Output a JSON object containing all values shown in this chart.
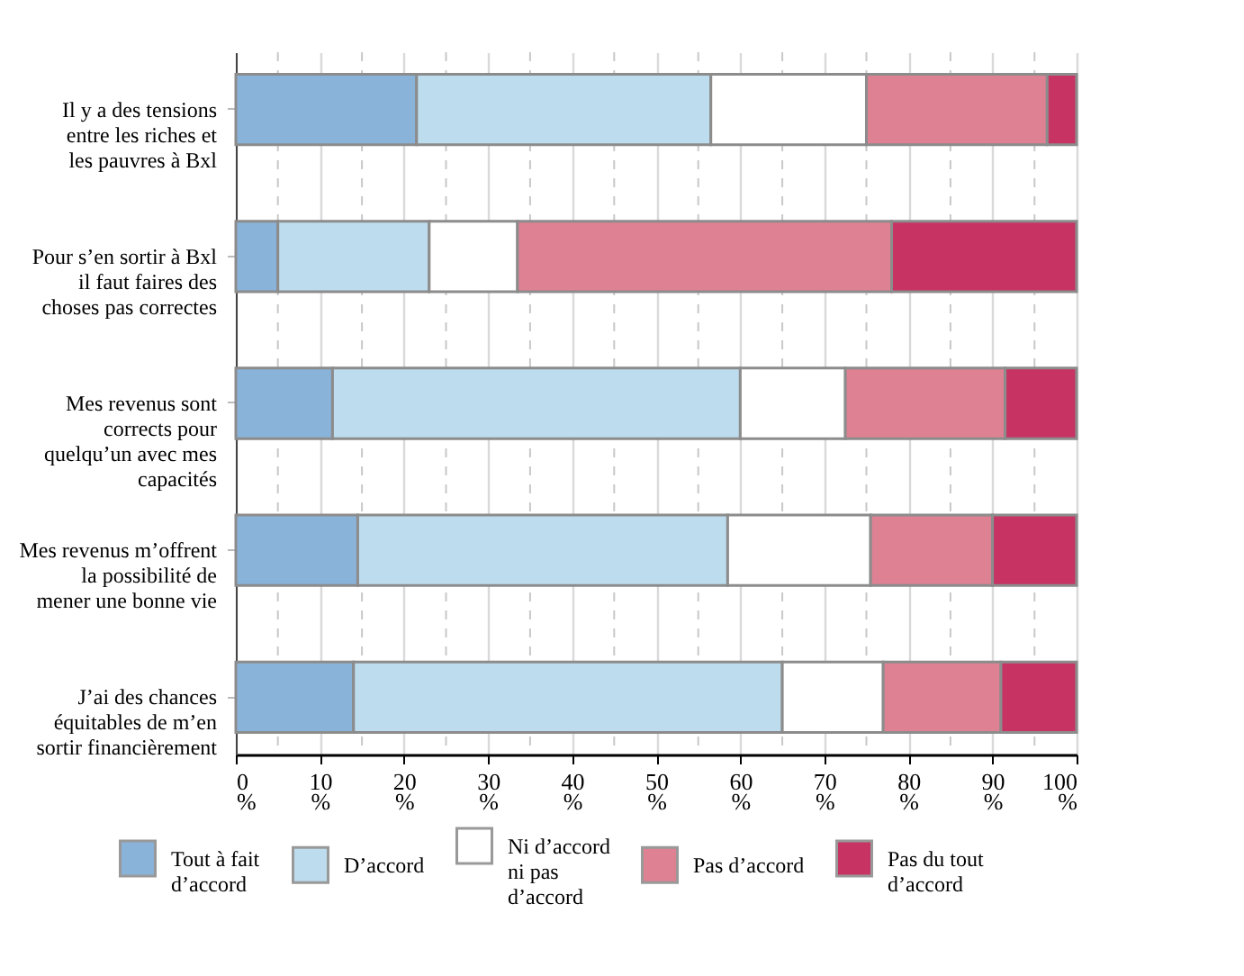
{
  "chart_data": {
    "type": "bar",
    "orientation": "horizontal",
    "stacked": true,
    "categories": [
      "Il y a des tensions entre les riches et les pauvres à Bxl",
      "Pour s’en sortir à Bxl il faut faires des choses pas correctes",
      "Mes revenus sont corrects pour quelqu’un avec mes capacités",
      "Mes revenus m’offrent la possibilité de mener une bonne vie",
      "J’ai des chances équitables de m’en sortir financièrement"
    ],
    "series": [
      {
        "name": "Tout à fait d’accord",
        "color": "#8ab3d9",
        "values": [
          21.5,
          5,
          11.5,
          14.5,
          14
        ]
      },
      {
        "name": "D’accord",
        "color": "#bddcee",
        "values": [
          35,
          18,
          48.5,
          44,
          51
        ]
      },
      {
        "name": "Ni d’accord ni pas d’accord",
        "color": "#ffffff",
        "values": [
          18.5,
          10.5,
          12.5,
          17,
          12
        ]
      },
      {
        "name": "Pas d’accord",
        "color": "#de8193",
        "values": [
          21.5,
          44.5,
          19,
          14.5,
          14
        ]
      },
      {
        "name": "Pas du tout d’accord",
        "color": "#c73463",
        "values": [
          3.5,
          22,
          8.5,
          10,
          9
        ]
      }
    ],
    "xlim": [
      0,
      100
    ],
    "xticks": [
      {
        "value": 0,
        "label": "0\n%"
      },
      {
        "value": 5,
        "label": null
      },
      {
        "value": 10,
        "label": "10\n%"
      },
      {
        "value": 15,
        "label": null
      },
      {
        "value": 20,
        "label": "20\n%"
      },
      {
        "value": 25,
        "label": null
      },
      {
        "value": 30,
        "label": "30\n%"
      },
      {
        "value": 35,
        "label": null
      },
      {
        "value": 40,
        "label": "40\n%"
      },
      {
        "value": 45,
        "label": null
      },
      {
        "value": 50,
        "label": "50\n%"
      },
      {
        "value": 55,
        "label": null
      },
      {
        "value": 60,
        "label": "60\n%"
      },
      {
        "value": 65,
        "label": null
      },
      {
        "value": 70,
        "label": "70\n%"
      },
      {
        "value": 75,
        "label": null
      },
      {
        "value": 80,
        "label": "80\n%"
      },
      {
        "value": 85,
        "label": null
      },
      {
        "value": 90,
        "label": "90\n%"
      },
      {
        "value": 95,
        "label": null
      },
      {
        "value": 100,
        "label": "100\n%"
      }
    ],
    "grid": "x",
    "legend": "bottom"
  }
}
